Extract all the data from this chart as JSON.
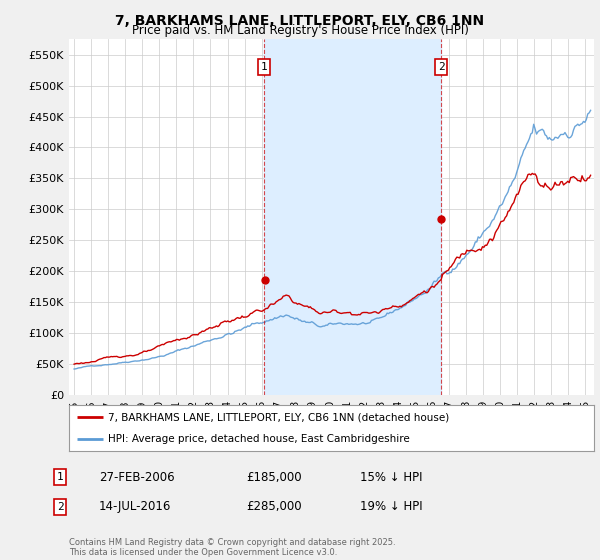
{
  "title": "7, BARKHAMS LANE, LITTLEPORT, ELY, CB6 1NN",
  "subtitle": "Price paid vs. HM Land Registry's House Price Index (HPI)",
  "ylabel_ticks": [
    "£0",
    "£50K",
    "£100K",
    "£150K",
    "£200K",
    "£250K",
    "£300K",
    "£350K",
    "£400K",
    "£450K",
    "£500K",
    "£550K"
  ],
  "ytick_values": [
    0,
    50000,
    100000,
    150000,
    200000,
    250000,
    300000,
    350000,
    400000,
    450000,
    500000,
    550000
  ],
  "ylim": [
    0,
    575000
  ],
  "xlim_start": 1994.7,
  "xlim_end": 2025.5,
  "hpi_color": "#5b9bd5",
  "hpi_fill_color": "#ddeeff",
  "price_color": "#cc0000",
  "marker1_x": 2006.15,
  "marker1_y": 185000,
  "marker1_label": "1",
  "marker2_x": 2016.54,
  "marker2_y": 285000,
  "marker2_label": "2",
  "legend_line1": "7, BARKHAMS LANE, LITTLEPORT, ELY, CB6 1NN (detached house)",
  "legend_line2": "HPI: Average price, detached house, East Cambridgeshire",
  "annotation1_date": "27-FEB-2006",
  "annotation1_price": "£185,000",
  "annotation1_hpi": "15% ↓ HPI",
  "annotation2_date": "14-JUL-2016",
  "annotation2_price": "£285,000",
  "annotation2_hpi": "19% ↓ HPI",
  "footnote": "Contains HM Land Registry data © Crown copyright and database right 2025.\nThis data is licensed under the Open Government Licence v3.0.",
  "background_color": "#f0f0f0",
  "plot_background": "#ffffff",
  "grid_color": "#cccccc"
}
